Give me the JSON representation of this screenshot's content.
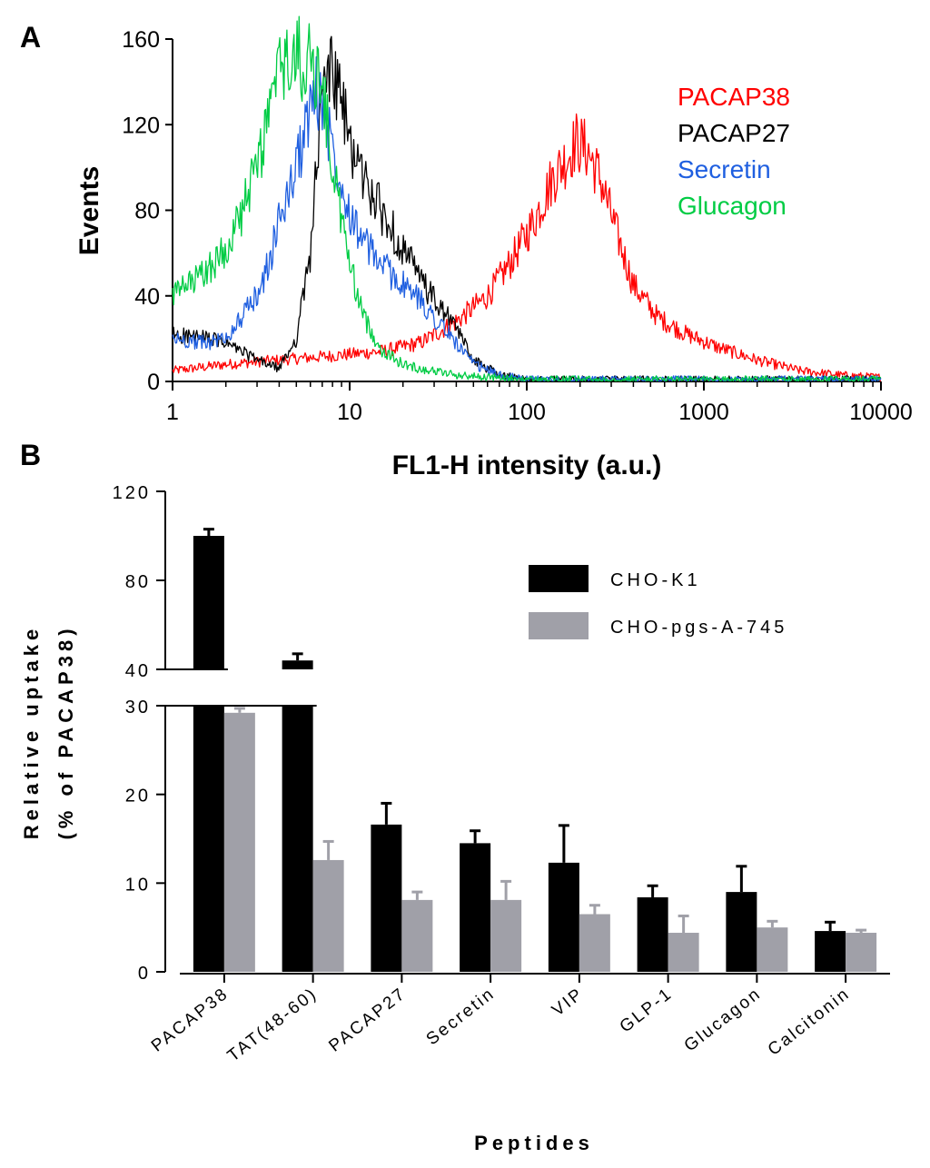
{
  "chart_data": [
    {
      "type": "line",
      "panel_label": "A",
      "xlabel": "FL1-H intensity (a.u.)",
      "ylabel": "Events",
      "xscale": "log",
      "xlim": [
        1,
        10000
      ],
      "ylim": [
        0,
        160
      ],
      "xticks": [
        1,
        10,
        100,
        1000,
        10000
      ],
      "xtick_labels": [
        "1",
        "10",
        "100",
        "1000",
        "10000"
      ],
      "yticks": [
        0,
        40,
        80,
        120,
        160
      ],
      "ytick_labels": [
        "0",
        "40",
        "80",
        "120",
        "160"
      ],
      "legend_position": "top-right",
      "series": [
        {
          "name": "PACAP38",
          "color": "#ff0000",
          "x": [
            1,
            2,
            4,
            8,
            15,
            25,
            40,
            60,
            80,
            110,
            140,
            170,
            190,
            220,
            260,
            320,
            400,
            550,
            800,
            1200,
            2000,
            3500,
            6000,
            10000
          ],
          "y": [
            5,
            8,
            10,
            12,
            14,
            18,
            28,
            40,
            55,
            75,
            95,
            105,
            112,
            108,
            95,
            70,
            45,
            30,
            22,
            16,
            10,
            5,
            3,
            2
          ]
        },
        {
          "name": "PACAP27",
          "color": "#000000",
          "x": [
            1,
            1.5,
            2,
            3,
            4,
            5,
            6,
            6.5,
            7,
            7.5,
            8,
            9,
            10,
            12,
            15,
            20,
            25,
            30,
            40,
            50,
            70,
            100,
            1000,
            10000
          ],
          "y": [
            22,
            20,
            18,
            10,
            6,
            20,
            60,
            100,
            130,
            148,
            145,
            130,
            112,
            95,
            80,
            62,
            48,
            38,
            25,
            10,
            3,
            1,
            1,
            1
          ]
        },
        {
          "name": "Secretin",
          "color": "#1f5fe0",
          "x": [
            1,
            1.5,
            2,
            3,
            3.5,
            4,
            5,
            6,
            6.5,
            7,
            8,
            10,
            12,
            15,
            20,
            25,
            30,
            40,
            50,
            70,
            100,
            1000,
            10000
          ],
          "y": [
            20,
            18,
            20,
            40,
            55,
            75,
            100,
            128,
            135,
            130,
            110,
            80,
            65,
            55,
            45,
            38,
            30,
            18,
            8,
            3,
            1,
            1,
            1
          ]
        },
        {
          "name": "Glucagon",
          "color": "#00cc44",
          "x": [
            1,
            1.5,
            2,
            2.5,
            3,
            3.5,
            4,
            5,
            6,
            7,
            8,
            10,
            12,
            15,
            20,
            25,
            30,
            40,
            60,
            100,
            1000,
            10000
          ],
          "y": [
            40,
            50,
            62,
            80,
            100,
            125,
            145,
            152,
            148,
            140,
            100,
            55,
            30,
            15,
            8,
            6,
            5,
            3,
            2,
            1,
            1,
            1
          ]
        }
      ]
    },
    {
      "type": "bar",
      "panel_label": "B",
      "xlabel": "Peptides",
      "ylabel_line1": "Relative uptake",
      "ylabel_line2": "(% of PACAP38)",
      "ylim": [
        0,
        120
      ],
      "broken_axis": {
        "lower": [
          0,
          30
        ],
        "upper": [
          40,
          120
        ]
      },
      "yticks_lower": [
        0,
        10,
        20,
        30
      ],
      "ytick_labels_lower": [
        "0",
        "10",
        "20",
        "30"
      ],
      "yticks_upper": [
        40,
        80,
        120
      ],
      "ytick_labels_upper": [
        "40",
        "80",
        "120"
      ],
      "legend_position": "top-right",
      "categories": [
        "PACAP38",
        "TAT(48-60)",
        "PACAP27",
        "Secretin",
        "VIP",
        "GLP-1",
        "Glucagon",
        "Calcitonin"
      ],
      "series": [
        {
          "name": "CHO-K1",
          "color": "#000000",
          "values": [
            100,
            44,
            16.6,
            14.5,
            12.3,
            8.4,
            9.0,
            4.6
          ],
          "errors": [
            3,
            3,
            2.4,
            1.4,
            4.2,
            1.3,
            2.9,
            1.0
          ]
        },
        {
          "name": "CHO-pgs-A-745",
          "color": "#a0a0a8",
          "values": [
            29.2,
            12.6,
            8.1,
            8.1,
            6.5,
            4.4,
            5.0,
            4.4
          ],
          "errors": [
            0.5,
            2.1,
            0.9,
            2.1,
            1.0,
            1.9,
            0.7,
            0.3
          ]
        }
      ]
    }
  ]
}
